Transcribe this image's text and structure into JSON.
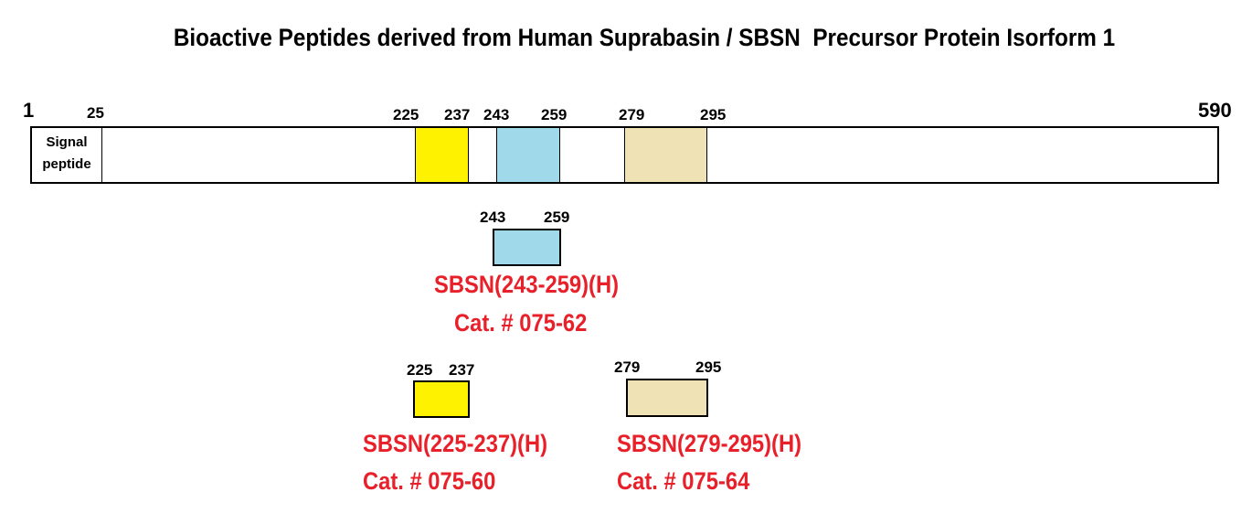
{
  "title": "Bioactive Peptides derived from Human Suprabasin / SBSN  Precursor Protein Isorform 1",
  "protein": {
    "start_label": "1",
    "end_label": "590",
    "signal_end_label": "25",
    "signal_text_line1": "Signal",
    "signal_text_line2": "peptide"
  },
  "segments": [
    {
      "start": "225",
      "end": "237",
      "color": "#fff200"
    },
    {
      "start": "243",
      "end": "259",
      "color": "#9fd9ea"
    },
    {
      "start": "279",
      "end": "295",
      "color": "#efe2b4"
    }
  ],
  "peptides": [
    {
      "start": "243",
      "end": "259",
      "name": "SBSN(243-259)(H)",
      "cat": "Cat. # 075-62",
      "color": "#9fd9ea"
    },
    {
      "start": "225",
      "end": "237",
      "name": "SBSN(225-237)(H)",
      "cat": "Cat. # 075-60",
      "color": "#fff200"
    },
    {
      "start": "279",
      "end": "295",
      "name": "SBSN(279-295)(H)",
      "cat": "Cat. # 075-64",
      "color": "#efe2b4"
    }
  ]
}
